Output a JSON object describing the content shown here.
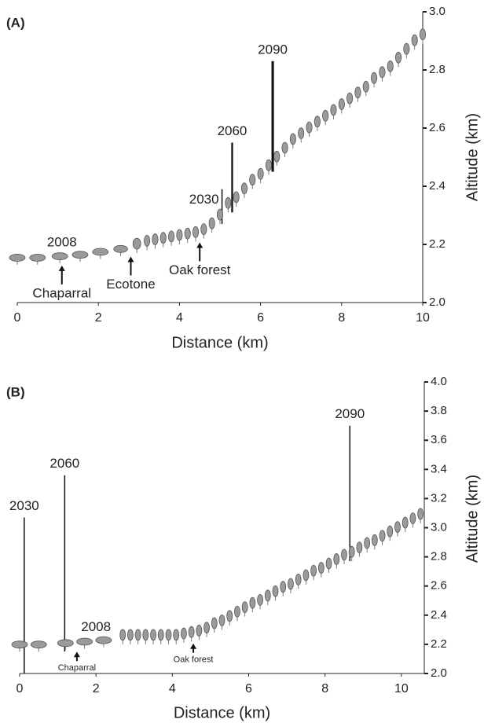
{
  "chart_data": [
    {
      "type": "scatter",
      "panel_label": "(A)",
      "xlabel": "Distance (km)",
      "ylabel": "Altitude (km)",
      "xlim": [
        0,
        10
      ],
      "xticks": [
        0,
        2,
        4,
        6,
        8,
        10
      ],
      "ylim": [
        2,
        3
      ],
      "yticks": [
        {
          "value": 2,
          "label": "2.0"
        },
        2.2,
        2.4,
        2.6,
        2.8,
        {
          "value": 3,
          "label": "3.0"
        }
      ],
      "color": "#9a9a9a",
      "x": [
        0,
        0.5,
        1.05,
        1.55,
        2.05,
        2.55,
        2.95,
        3.2,
        3.4,
        3.6,
        3.8,
        4.0,
        4.2,
        4.4,
        4.6,
        4.8,
        5.0,
        5.2,
        5.4,
        5.6,
        5.8,
        6.0,
        6.2,
        6.4,
        6.6,
        6.8,
        7.0,
        7.2,
        7.4,
        7.6,
        7.8,
        8.0,
        8.2,
        8.4,
        8.6,
        8.8,
        9.0,
        9.2,
        9.4,
        9.6,
        9.8,
        10.0
      ],
      "values": [
        2.13,
        2.13,
        2.135,
        2.14,
        2.15,
        2.16,
        2.17,
        2.18,
        2.185,
        2.19,
        2.195,
        2.2,
        2.205,
        2.21,
        2.22,
        2.24,
        2.27,
        2.31,
        2.33,
        2.36,
        2.39,
        2.41,
        2.44,
        2.47,
        2.5,
        2.53,
        2.55,
        2.57,
        2.59,
        2.61,
        2.63,
        2.65,
        2.67,
        2.69,
        2.71,
        2.74,
        2.76,
        2.78,
        2.81,
        2.84,
        2.87,
        2.89
      ],
      "annotations": [
        {
          "text": "2030",
          "x": 5.05,
          "y": [
            2.27,
            2.39
          ]
        },
        {
          "text": "2060",
          "x": 5.3,
          "y": [
            2.31,
            2.55
          ]
        },
        {
          "text": "2090",
          "x": 6.3,
          "y": [
            2.45,
            2.83
          ]
        }
      ],
      "labels": [
        {
          "text": "2008",
          "x": 1.1
        }
      ],
      "arrows": [
        {
          "text": "Chaparral",
          "x": 1.1
        },
        {
          "text": "Ecotone",
          "x": 2.8
        },
        {
          "text": "Oak forest",
          "x": 4.5
        }
      ]
    },
    {
      "type": "scatter",
      "panel_label": "(B)",
      "xlabel": "Distance (km)",
      "ylabel": "Altitude (km)",
      "xlim": [
        0,
        10.6
      ],
      "xticks": [
        0,
        2,
        4,
        6,
        8,
        10
      ],
      "ylim": [
        2,
        4
      ],
      "yticks": [
        {
          "value": 2,
          "label": "2.0"
        },
        2.2,
        2.4,
        2.6,
        2.8,
        {
          "value": 3,
          "label": "3.0"
        },
        3.2,
        3.4,
        3.6,
        3.8,
        {
          "value": 4,
          "label": "4.0"
        }
      ],
      "color": "#9a9a9a",
      "x": [
        0,
        0.5,
        1.2,
        1.7,
        2.2,
        2.7,
        2.9,
        3.1,
        3.3,
        3.5,
        3.7,
        3.9,
        4.1,
        4.3,
        4.5,
        4.7,
        4.9,
        5.1,
        5.3,
        5.5,
        5.7,
        5.9,
        6.1,
        6.3,
        6.5,
        6.7,
        6.9,
        7.1,
        7.3,
        7.5,
        7.7,
        7.9,
        8.1,
        8.3,
        8.5,
        8.7,
        8.9,
        9.1,
        9.3,
        9.5,
        9.7,
        9.9,
        10.1,
        10.3,
        10.5
      ],
      "values": [
        2.15,
        2.15,
        2.16,
        2.17,
        2.18,
        2.2,
        2.2,
        2.2,
        2.2,
        2.2,
        2.2,
        2.2,
        2.2,
        2.21,
        2.22,
        2.23,
        2.25,
        2.28,
        2.3,
        2.33,
        2.36,
        2.39,
        2.42,
        2.44,
        2.47,
        2.5,
        2.53,
        2.55,
        2.58,
        2.61,
        2.64,
        2.66,
        2.69,
        2.72,
        2.75,
        2.77,
        2.8,
        2.83,
        2.85,
        2.88,
        2.91,
        2.94,
        2.97,
        3.0,
        3.03
      ],
      "annotations": [
        {
          "text": "2030",
          "x": 0.12,
          "y": [
            2.0,
            3.07
          ]
        },
        {
          "text": "2060",
          "x": 1.18,
          "y": [
            2.15,
            3.36
          ]
        },
        {
          "text": "2090",
          "x": 8.65,
          "y": [
            2.77,
            3.7
          ]
        }
      ],
      "labels": [
        {
          "text": "2008",
          "x": 2.0
        }
      ],
      "arrows": [
        {
          "text": "Chaparral",
          "x": 1.5
        },
        {
          "text": "Oak forest",
          "x": 4.55
        }
      ]
    }
  ]
}
